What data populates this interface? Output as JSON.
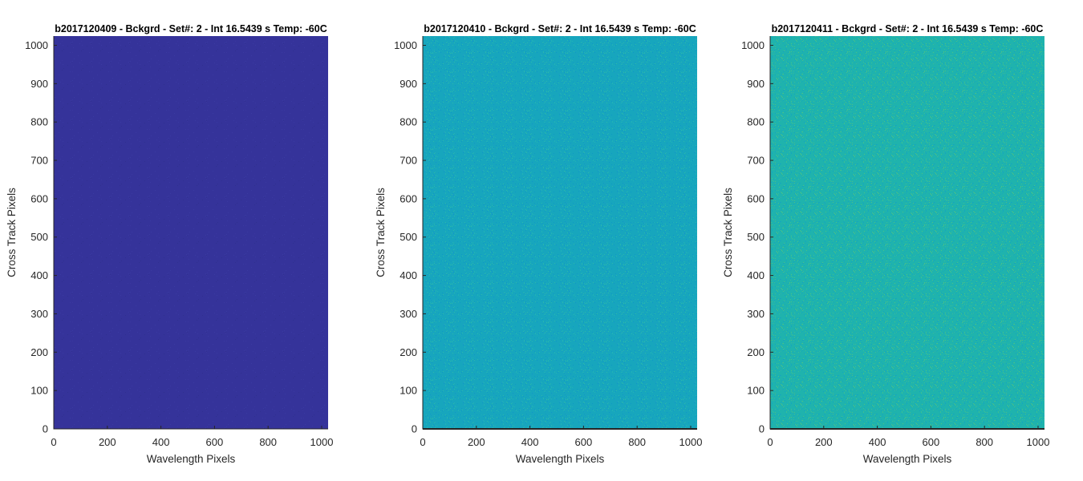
{
  "chart_data": [
    {
      "type": "heatmap",
      "title": "b2017120409 - Bckgrd - Set#: 2 - Int 16.5439 s Temp: -60C",
      "xlabel": "Wavelength Pixels",
      "ylabel": "Cross Track Pixels",
      "xlim": [
        0,
        1024
      ],
      "ylim": [
        0,
        1024
      ],
      "xticks": [
        0,
        200,
        400,
        600,
        800,
        1000
      ],
      "yticks": [
        0,
        100,
        200,
        300,
        400,
        500,
        600,
        700,
        800,
        900,
        1000
      ],
      "fill_color": "#35339a",
      "noise_colors": [
        "#3a3aa2",
        "#30308f",
        "#3b36a0"
      ]
    },
    {
      "type": "heatmap",
      "title": "b2017120410 - Bckgrd - Set#: 2 - Int 16.5439 s Temp: -60C",
      "xlabel": "Wavelength Pixels",
      "ylabel": "Cross Track Pixels",
      "xlim": [
        0,
        1024
      ],
      "ylim": [
        0,
        1024
      ],
      "xticks": [
        0,
        200,
        400,
        600,
        800,
        1000
      ],
      "yticks": [
        0,
        100,
        200,
        300,
        400,
        500,
        600,
        700,
        800,
        900,
        1000
      ],
      "fill_color": "#17a6bd",
      "noise_colors": [
        "#22b2b6",
        "#0f98c6",
        "#2cb8ab",
        "#1aa0c3"
      ]
    },
    {
      "type": "heatmap",
      "title": "b2017120411 - Bckgrd - Set#: 2 - Int 16.5439 s Temp: -60C",
      "xlabel": "Wavelength Pixels",
      "ylabel": "Cross Track Pixels",
      "xlim": [
        0,
        1024
      ],
      "ylim": [
        0,
        1024
      ],
      "xticks": [
        0,
        200,
        400,
        600,
        800,
        1000
      ],
      "yticks": [
        0,
        100,
        200,
        300,
        400,
        500,
        600,
        700,
        800,
        900,
        1000
      ],
      "fill_color": "#1fb3ad",
      "noise_colors": [
        "#3cbd95",
        "#17a8bd",
        "#4cc284",
        "#14a3c2"
      ]
    }
  ]
}
